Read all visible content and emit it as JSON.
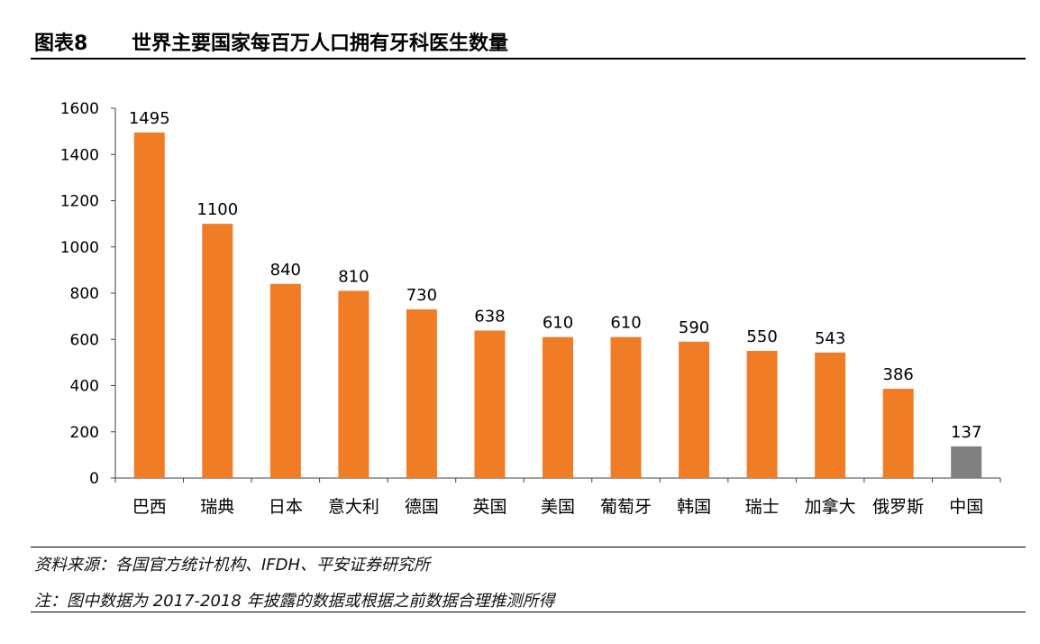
{
  "figure": {
    "label": "图表8",
    "title": "世界主要国家每百万人口拥有牙科医生数量"
  },
  "chart_data": {
    "type": "bar",
    "categories": [
      "巴西",
      "瑞典",
      "日本",
      "意大利",
      "德国",
      "英国",
      "美国",
      "葡萄牙",
      "韩国",
      "瑞士",
      "加拿大",
      "俄罗斯",
      "中国"
    ],
    "values": [
      1495,
      1100,
      840,
      810,
      730,
      638,
      610,
      610,
      590,
      550,
      543,
      386,
      137
    ],
    "data_labels": [
      "1495",
      "1100",
      "840",
      "810",
      "730",
      "638",
      "610",
      "610",
      "590",
      "550",
      "543",
      "386",
      "137"
    ],
    "bar_colors": [
      "#F07C26",
      "#F07C26",
      "#F07C26",
      "#F07C26",
      "#F07C26",
      "#F07C26",
      "#F07C26",
      "#F07C26",
      "#F07C26",
      "#F07C26",
      "#F07C26",
      "#F07C26",
      "#808080"
    ],
    "ylim": [
      0,
      1600
    ],
    "yticks": [
      0,
      200,
      400,
      600,
      800,
      1000,
      1200,
      1400,
      1600
    ],
    "grid": false,
    "legend": "none"
  },
  "notes": {
    "source": "资料来源：各国官方统计机构、IFDH、平安证券研究所",
    "remark": "注：图中数据为 2017-2018 年披露的数据或根据之前数据合理推测所得"
  }
}
